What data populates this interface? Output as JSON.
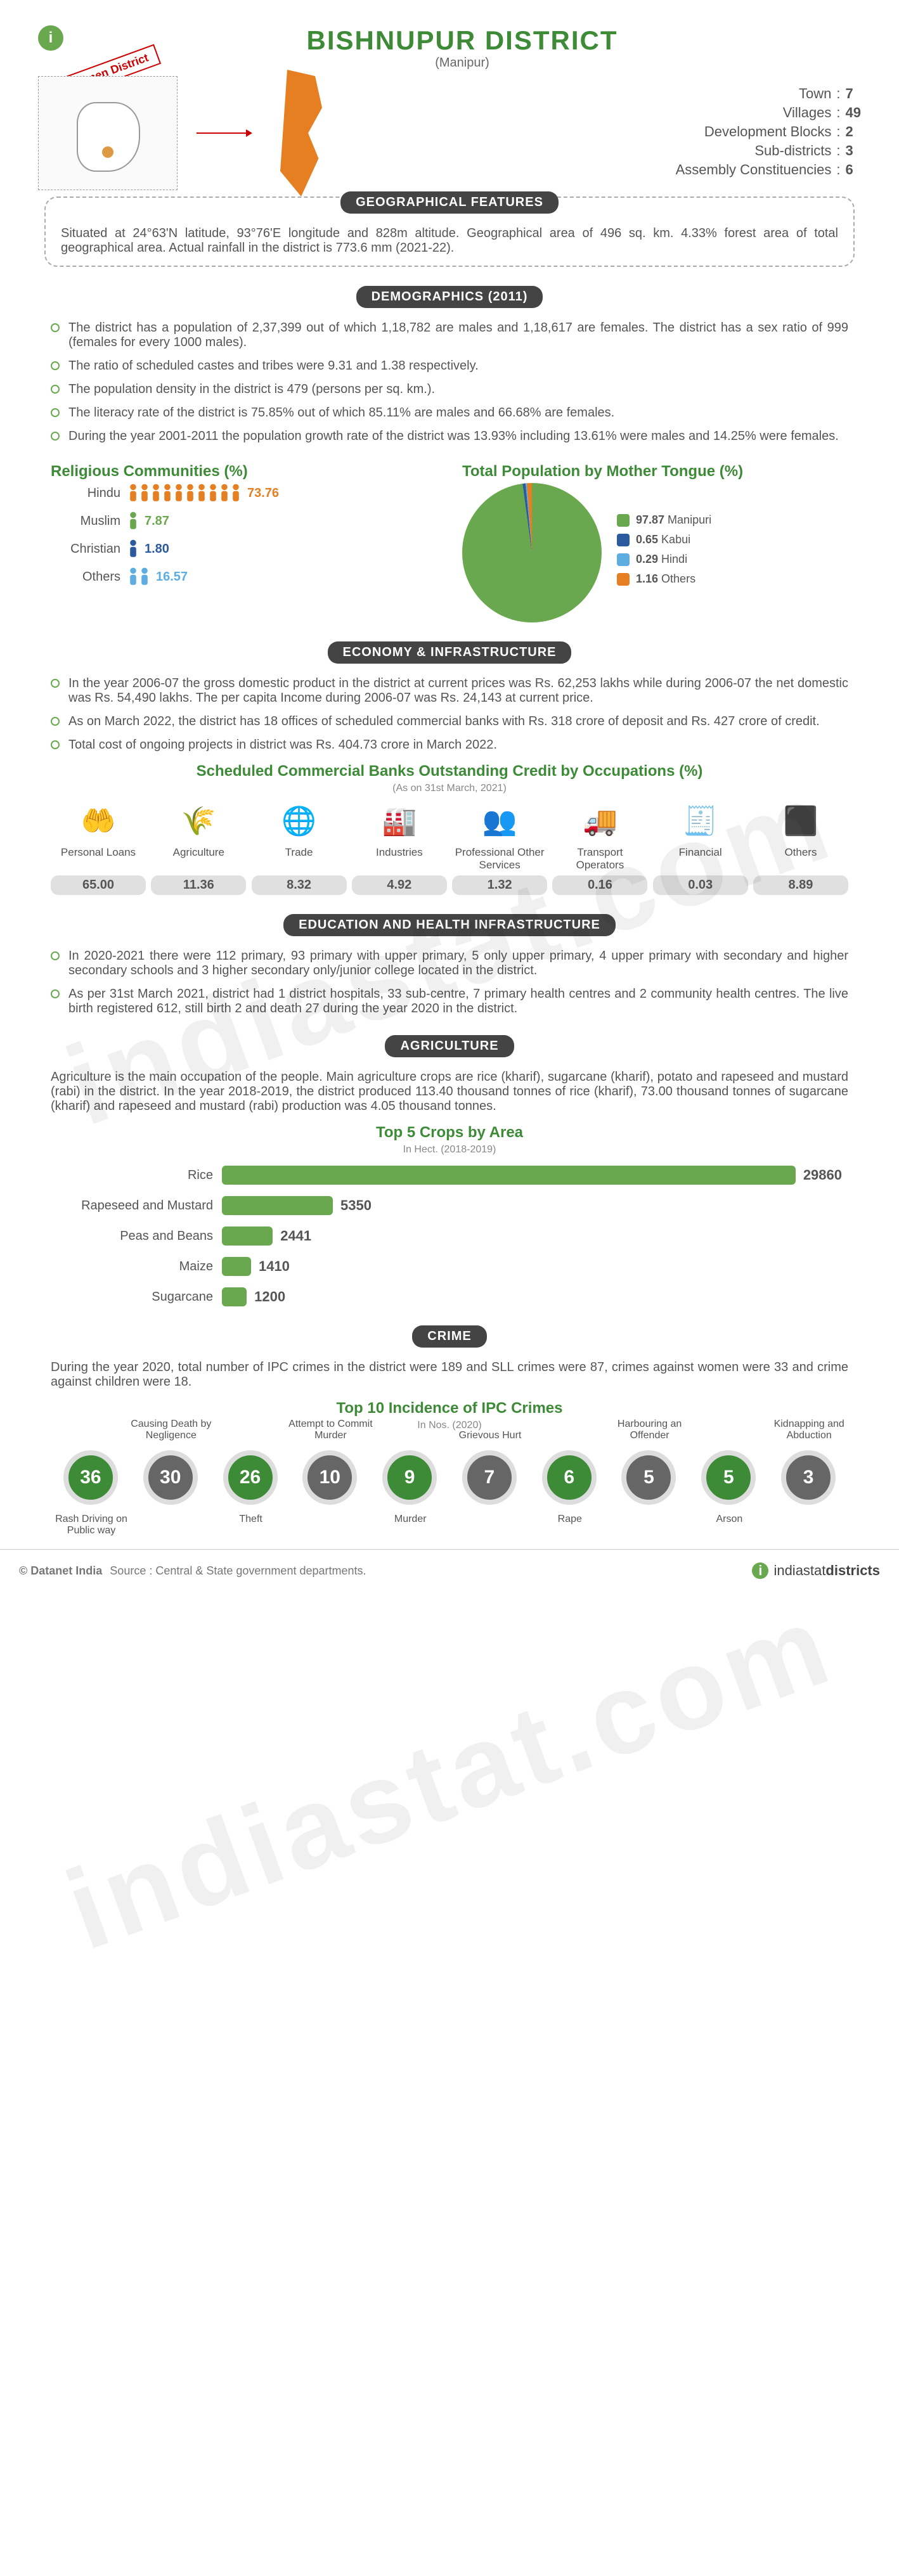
{
  "header": {
    "title": "BISHNUPUR DISTRICT",
    "subtitle": "(Manipur)",
    "specimen_label": "Specimen District"
  },
  "overview": {
    "rows": [
      {
        "label": "Town",
        "value": "7"
      },
      {
        "label": "Villages",
        "value": "49"
      },
      {
        "label": "Development Blocks",
        "value": "2"
      },
      {
        "label": "Sub-districts",
        "value": "3"
      },
      {
        "label": "Assembly Constituencies",
        "value": "6"
      }
    ]
  },
  "sections": {
    "geo_title": "GEOGRAPHICAL FEATURES",
    "demo_title": "DEMOGRAPHICS (2011)",
    "econ_title": "ECONOMY & INFRASTRUCTURE",
    "edu_title": "EDUCATION AND HEALTH INFRASTRUCTURE",
    "agri_title": "AGRICULTURE",
    "crime_title": "CRIME"
  },
  "geo": {
    "text": "Situated at 24°63'N latitude, 93°76'E longitude and 828m altitude. Geographical area of 496 sq. km. 4.33% forest area of total geographical area. Actual rainfall in the district is 773.6 mm (2021-22)."
  },
  "demographics": {
    "bullets": [
      "The district has a population of 2,37,399 out of which 1,18,782 are males and 1,18,617 are females. The district has a sex ratio of 999 (females for every 1000 males).",
      "The ratio of scheduled castes and tribes were 9.31 and 1.38 respectively.",
      "The population density in the district is 479 (persons per sq. km.).",
      "The literacy rate of the district is 75.85% out of which 85.11% are males and 66.68% are females.",
      "During the year 2001-2011 the population growth rate of the district was 13.93% including 13.61% were males and 14.25% were females."
    ],
    "religion_title": "Religious Communities (%)",
    "religion_rows": [
      {
        "label": "Hindu",
        "value": 73.76,
        "icons": 10,
        "color": "#e67e22"
      },
      {
        "label": "Muslim",
        "value": 7.87,
        "icons": 1,
        "color": "#6aa84f"
      },
      {
        "label": "Christian",
        "value": 1.8,
        "icons": 1,
        "color": "#2c5aa0"
      },
      {
        "label": "Others",
        "value": 16.57,
        "icons": 2,
        "color": "#5dade2"
      }
    ],
    "tongue_title": "Total Population by Mother Tongue (%)",
    "tongue_legend": [
      {
        "label": "Manipuri",
        "value": 97.87,
        "color": "#6aa84f"
      },
      {
        "label": "Kabui",
        "value": 0.65,
        "color": "#2c5aa0"
      },
      {
        "label": "Hindi",
        "value": 0.29,
        "color": "#5dade2"
      },
      {
        "label": "Others",
        "value": 1.16,
        "color": "#e67e22"
      }
    ]
  },
  "economy": {
    "bullets": [
      "In the year 2006-07 the gross domestic product in the district at current prices was Rs. 62,253 lakhs while during 2006-07 the net domestic was Rs. 54,490 lakhs. The per capita Income during 2006-07 was Rs. 24,143 at current price.",
      "As on March 2022, the district has 18 offices of scheduled commercial banks with Rs. 318 crore of deposit and Rs. 427 crore of credit.",
      "Total cost of ongoing projects in district was Rs. 404.73 crore in March 2022."
    ],
    "credit_title": "Scheduled Commercial Banks Outstanding Credit by Occupations (%)",
    "credit_subnote": "(As on 31st March, 2021)",
    "occupations": [
      {
        "label": "Personal Loans",
        "value": "65.00",
        "icon": "🤲"
      },
      {
        "label": "Agriculture",
        "value": "11.36",
        "icon": "🌾"
      },
      {
        "label": "Trade",
        "value": "8.32",
        "icon": "🌐"
      },
      {
        "label": "Industries",
        "value": "4.92",
        "icon": "🏭"
      },
      {
        "label": "Professional Other Services",
        "value": "1.32",
        "icon": "👥"
      },
      {
        "label": "Transport Operators",
        "value": "0.16",
        "icon": "🚚"
      },
      {
        "label": "Financial",
        "value": "0.03",
        "icon": "🧾"
      },
      {
        "label": "Others",
        "value": "8.89",
        "icon": "⬛"
      }
    ]
  },
  "education": {
    "bullets": [
      "In 2020-2021 there were 112 primary, 93 primary with upper primary, 5 only upper primary, 4 upper primary with secondary and higher secondary schools and 3 higher secondary only/junior college located in the district.",
      "As per 31st March 2021, district had 1 district hospitals, 33 sub-centre, 7 primary health centres and 2 community health centres. The live birth registered 612, still birth 2 and death 27 during the year 2020 in the district."
    ]
  },
  "agriculture": {
    "text": "Agriculture is the main occupation of the people. Main agriculture crops are rice (kharif), sugarcane (kharif), potato and rapeseed and mustard (rabi) in the district. In the year 2018-2019, the district produced 113.40 thousand tonnes of rice (kharif), 73.00 thousand tonnes of sugarcane (kharif) and rapeseed and mustard (rabi) production was 4.05 thousand tonnes.",
    "chart_title": "Top 5 Crops by Area",
    "chart_subnote": "In Hect. (2018-2019)",
    "max_value": 29860,
    "bars": [
      {
        "label": "Rice",
        "value": 29860
      },
      {
        "label": "Rapeseed and Mustard",
        "value": 5350
      },
      {
        "label": "Peas and Beans",
        "value": 2441
      },
      {
        "label": "Maize",
        "value": 1410
      },
      {
        "label": "Sugarcane",
        "value": 1200
      }
    ],
    "bar_color": "#6aa84f"
  },
  "crime": {
    "text": "During the year 2020, total number of IPC crimes in the district were 189 and SLL crimes were 87, crimes against women were 33 and crime against children were 18.",
    "chart_title": "Top 10 Incidence of IPC Crimes",
    "chart_subnote": "In Nos. (2020)",
    "nodes": [
      {
        "value": 36,
        "label": "Rash Driving on Public way",
        "pos": "bot",
        "color": "#3d8b37"
      },
      {
        "value": 30,
        "label": "Causing Death by Negligence",
        "pos": "top",
        "color": "#666"
      },
      {
        "value": 26,
        "label": "Theft",
        "pos": "bot",
        "color": "#3d8b37"
      },
      {
        "value": 10,
        "label": "Attempt to Commit Murder",
        "pos": "top",
        "color": "#666"
      },
      {
        "value": 9,
        "label": "Murder",
        "pos": "bot",
        "color": "#3d8b37"
      },
      {
        "value": 7,
        "label": "Grievous Hurt",
        "pos": "top",
        "color": "#666"
      },
      {
        "value": 6,
        "label": "Rape",
        "pos": "bot",
        "color": "#3d8b37"
      },
      {
        "value": 5,
        "label": "Harbouring an Offender",
        "pos": "top",
        "color": "#666"
      },
      {
        "value": 5,
        "label": "Arson",
        "pos": "bot",
        "color": "#3d8b37"
      },
      {
        "value": 3,
        "label": "Kidnapping and Abduction",
        "pos": "top",
        "color": "#666"
      }
    ]
  },
  "footer": {
    "copyright": "© Datanet India",
    "source": "Source : Central & State government departments.",
    "brand": "indiastatdistricts"
  },
  "watermark": "indiastat.com"
}
